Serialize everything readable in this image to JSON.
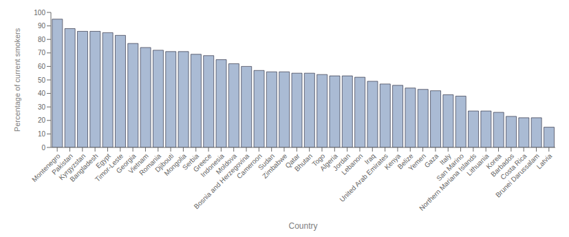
{
  "chart_data": {
    "type": "bar",
    "categories": [
      "Montenegro",
      "Pakistan",
      "Kyrgyzstan",
      "Bangladesh",
      "Egypt",
      "Timor-Leste",
      "Georgia",
      "Vietnam",
      "Romania",
      "Djibouti",
      "Mongolia",
      "Serbia",
      "Greece",
      "Indonesia",
      "Moldova",
      "Bosnia and Herzegovina",
      "Cameroon",
      "Sudan",
      "Zimbabwe",
      "Qatar",
      "Bhutan",
      "Togo",
      "Algeria",
      "Jordan",
      "Lebanon",
      "Iraq",
      "United Arab Emirates",
      "Kenya",
      "Belize",
      "Yemen",
      "Gaza",
      "Italy",
      "San Marino",
      "Northern Mariana Islands",
      "Lithuania",
      "Korea",
      "Barbados",
      "Costa Rica",
      "Brunei Darussalam",
      "Latvia"
    ],
    "values": [
      95,
      88,
      86,
      86,
      85,
      83,
      77,
      74,
      72,
      71,
      71,
      69,
      68,
      65,
      62,
      60,
      57,
      56,
      56,
      55,
      55,
      54,
      53,
      53,
      52,
      49,
      47,
      46,
      44,
      43,
      42,
      39,
      38,
      27,
      27,
      26,
      23,
      22,
      22,
      15
    ],
    "color": "#aabbd4",
    "xlabel": "Country",
    "ylabel": "Percentage of current smokers",
    "ylim": [
      0,
      100
    ],
    "yticks": [
      0,
      10,
      20,
      30,
      40,
      50,
      60,
      70,
      80,
      90,
      100
    ],
    "grid": false
  }
}
